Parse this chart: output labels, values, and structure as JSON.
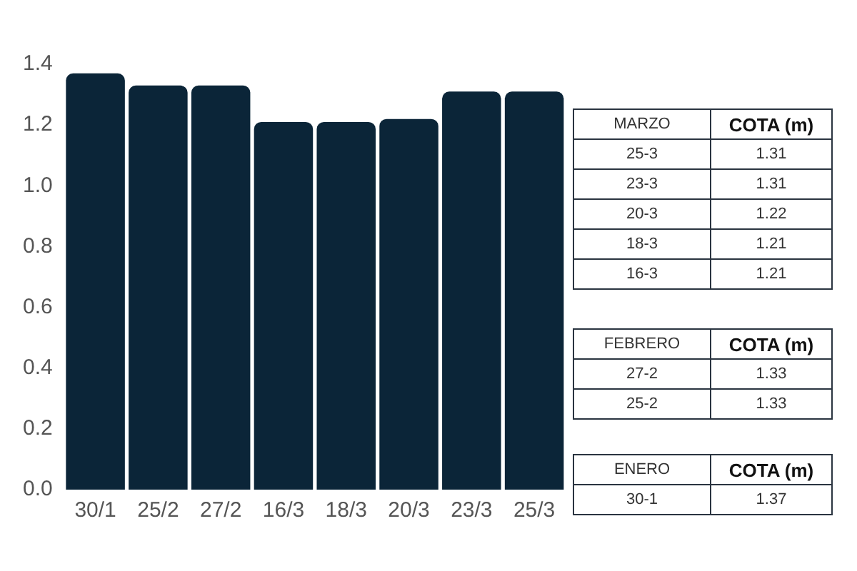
{
  "chart_data": [
    {
      "type": "bar",
      "categories": [
        "30/1",
        "25/2",
        "27/2",
        "16/3",
        "18/3",
        "20/3",
        "23/3",
        "25/3"
      ],
      "values": [
        1.37,
        1.33,
        1.33,
        1.21,
        1.21,
        1.22,
        1.31,
        1.31
      ],
      "color": "#0b2538",
      "ylim": [
        0,
        1.4
      ],
      "yticks": [
        {
          "value": 0,
          "label": "0.0"
        },
        0.2,
        0.4,
        0.6,
        0.8,
        {
          "value": 1,
          "label": "1.0"
        },
        1.2,
        1.4
      ],
      "grid": false,
      "legend": false
    },
    {
      "type": "other",
      "xlabel": "MARZO",
      "ylabel": "COTA (m)",
      "categories": [
        "25-3",
        "23-3",
        "20-3",
        "18-3",
        "16-3"
      ],
      "values": [
        1.31,
        1.31,
        1.22,
        1.21,
        1.21
      ],
      "data_labels": true
    },
    {
      "type": "other",
      "xlabel": "FEBRERO",
      "ylabel": "COTA (m)",
      "categories": [
        "27-2",
        "25-2"
      ],
      "values": [
        1.33,
        1.33
      ],
      "data_labels": true
    },
    {
      "type": "other",
      "xlabel": "ENERO",
      "ylabel": "COTA (m)",
      "categories": [
        "30-1"
      ],
      "values": [
        1.37
      ],
      "data_labels": true
    }
  ]
}
